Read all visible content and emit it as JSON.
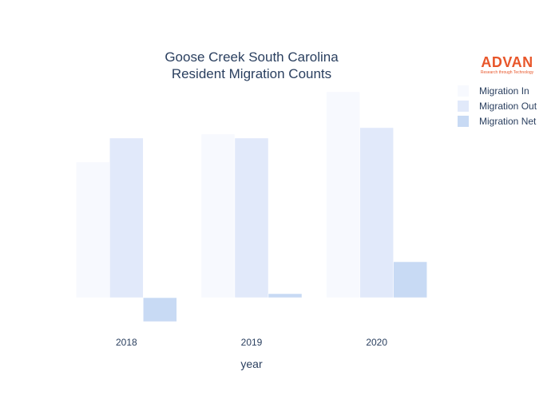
{
  "logo": {
    "name": "ADVAN",
    "tagline": "Research through Technology",
    "color": "#e8562a"
  },
  "chart_data": {
    "type": "bar",
    "title_lines": [
      "Goose Creek South Carolina",
      "Resident Migration Counts"
    ],
    "xlabel": "year",
    "ylabel": "",
    "categories": [
      "2018",
      "2019",
      "2020"
    ],
    "series": [
      {
        "name": "Migration In",
        "values": [
          1700,
          2050,
          2580
        ],
        "color": "#f7f9fe"
      },
      {
        "name": "Migration Out",
        "values": [
          2000,
          2000,
          2130
        ],
        "color": "#e1e9fa"
      },
      {
        "name": "Migration Net",
        "values": [
          -300,
          50,
          450
        ],
        "color": "#c8daf4"
      }
    ],
    "ylim": [
      -450,
      2800
    ],
    "grid": false,
    "legend": "top-right"
  }
}
